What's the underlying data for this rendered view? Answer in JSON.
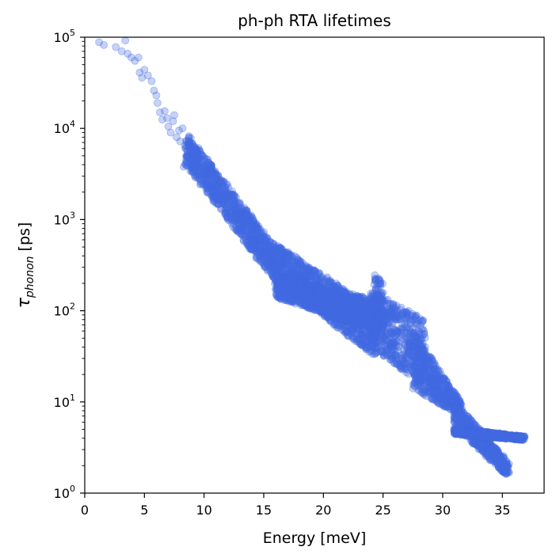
{
  "chart_data": {
    "type": "scatter",
    "title": "ph-ph RTA lifetimes",
    "xlabel": "Energy [meV]",
    "ylabel": "τphonon [ps]",
    "ylabel_symbol": "τ",
    "ylabel_subscript": "phonon",
    "ylabel_unit": "[ps]",
    "xlim": [
      0,
      38.5
    ],
    "ylim": [
      1,
      100000
    ],
    "yscale": "log",
    "xticks": [
      "0",
      "5",
      "10",
      "15",
      "20",
      "25",
      "30",
      "35"
    ],
    "xtick_values": [
      0,
      5,
      10,
      15,
      20,
      25,
      30,
      35
    ],
    "yticks": [
      {
        "base": "10",
        "exp": "0"
      },
      {
        "base": "10",
        "exp": "1"
      },
      {
        "base": "10",
        "exp": "2"
      },
      {
        "base": "10",
        "exp": "3"
      },
      {
        "base": "10",
        "exp": "4"
      },
      {
        "base": "10",
        "exp": "5"
      }
    ],
    "ytick_values": [
      1,
      10,
      100,
      1000,
      10000,
      100000
    ],
    "grid": false,
    "marker_color": "#4169e1",
    "marker_alpha": 0.3,
    "series": [
      {
        "points": [
          [
            1.2,
            88000
          ],
          [
            1.6,
            82000
          ],
          [
            2.4,
            100000
          ],
          [
            2.6,
            78000
          ],
          [
            3.0,
            98000
          ],
          [
            3.1,
            70000
          ],
          [
            3.4,
            92000
          ],
          [
            3.6,
            66000
          ],
          [
            3.9,
            60000
          ],
          [
            4.2,
            55000
          ],
          [
            4.5,
            60000
          ],
          [
            4.6,
            41000
          ],
          [
            4.8,
            36000
          ],
          [
            5.0,
            44000
          ],
          [
            5.3,
            38000
          ],
          [
            5.6,
            33000
          ],
          [
            5.8,
            26000
          ],
          [
            6.0,
            23000
          ],
          [
            6.1,
            19000
          ],
          [
            6.3,
            15000
          ],
          [
            6.5,
            12500
          ],
          [
            6.7,
            15500
          ],
          [
            6.9,
            13000
          ],
          [
            7.0,
            10500
          ],
          [
            7.2,
            9000
          ],
          [
            7.4,
            12000
          ],
          [
            7.5,
            14000
          ],
          [
            7.7,
            8000
          ],
          [
            7.9,
            9500
          ],
          [
            8.0,
            7200
          ],
          [
            8.2,
            10000
          ],
          [
            8.4,
            6500
          ],
          [
            8.6,
            5500
          ],
          [
            8.8,
            6800
          ],
          [
            9.0,
            5000
          ],
          [
            9.2,
            4200
          ],
          [
            9.4,
            4600
          ],
          [
            9.6,
            5800
          ],
          [
            9.8,
            3900
          ],
          [
            10.0,
            3600
          ],
          [
            8.3,
            3800
          ],
          [
            8.6,
            3900
          ]
        ]
      }
    ],
    "bands": [
      {
        "x0": 8.5,
        "x1": 15.5,
        "y0_hi": 9000,
        "y1_hi": 600,
        "y0_lo": 4000,
        "y1_lo": 250
      },
      {
        "x0": 15.5,
        "x1": 24.5,
        "y0_hi": 600,
        "y1_hi": 100,
        "y0_lo": 250,
        "y1_lo": 30
      },
      {
        "x0": 24.0,
        "x1": 28.5,
        "y0_hi": 170,
        "y1_hi": 80,
        "y0_lo": 40,
        "y1_lo": 15
      },
      {
        "x0": 27.5,
        "x1": 31.5,
        "y0_hi": 60,
        "y1_hi": 10,
        "y0_lo": 14,
        "y1_lo": 7
      },
      {
        "x0": 31.0,
        "x1": 35.5,
        "y0_hi": 10,
        "y1_hi": 2.2,
        "y0_lo": 5.5,
        "y1_lo": 1.5
      },
      {
        "x0": 31.0,
        "x1": 36.8,
        "y0_hi": 5.2,
        "y1_hi": 4.2,
        "y0_lo": 4.4,
        "y1_lo": 3.8
      },
      {
        "x0": 16.0,
        "x1": 24.5,
        "y0_hi": 250,
        "y1_hi": 130,
        "y0_lo": 140,
        "y1_lo": 60
      },
      {
        "x0": 24.3,
        "x1": 25.0,
        "y0_hi": 250,
        "y1_hi": 200,
        "y0_lo": 120,
        "y1_lo": 60
      }
    ]
  }
}
